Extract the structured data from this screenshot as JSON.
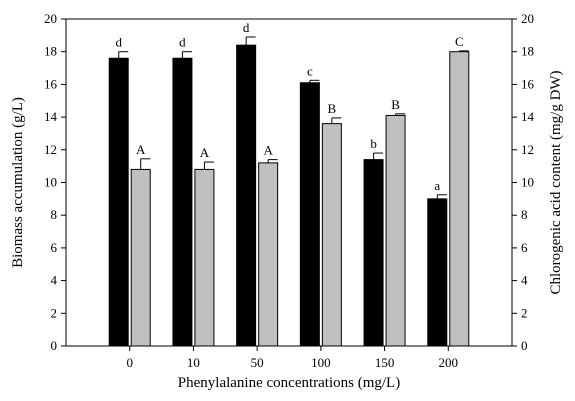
{
  "chart_data": {
    "type": "bar",
    "xlabel": "Phenylalanine concentrations (mg/L)",
    "categories": [
      "0",
      "10",
      "50",
      "100",
      "150",
      "200"
    ],
    "left_axis": {
      "label": "Biomass accumulation (g/L)",
      "ylim": [
        0,
        20
      ],
      "ticks": [
        "0",
        "2",
        "4",
        "6",
        "8",
        "10",
        "12",
        "14",
        "16",
        "18",
        "20"
      ]
    },
    "right_axis": {
      "label": "Chlorogenic acid content (mg/g DW)",
      "ylim": [
        0,
        20
      ],
      "ticks": [
        "0",
        "2",
        "4",
        "6",
        "8",
        "10",
        "12",
        "14",
        "16",
        "18",
        "20"
      ]
    },
    "series": [
      {
        "axis": "left",
        "color": "#000000",
        "values": [
          17.6,
          17.6,
          18.4,
          16.1,
          11.4,
          9.0
        ],
        "errors": [
          0.4,
          0.4,
          0.5,
          0.15,
          0.4,
          0.25
        ],
        "significance": [
          "d",
          "d",
          "d",
          "c",
          "b",
          "a"
        ]
      },
      {
        "axis": "right",
        "color": "#c0c0c0",
        "values": [
          10.8,
          10.8,
          11.2,
          13.6,
          14.1,
          18.0
        ],
        "errors": [
          0.65,
          0.45,
          0.2,
          0.35,
          0.1,
          0.05
        ],
        "significance": [
          "A",
          "A",
          "A",
          "B",
          "B",
          "C"
        ]
      }
    ],
    "grid": false
  }
}
